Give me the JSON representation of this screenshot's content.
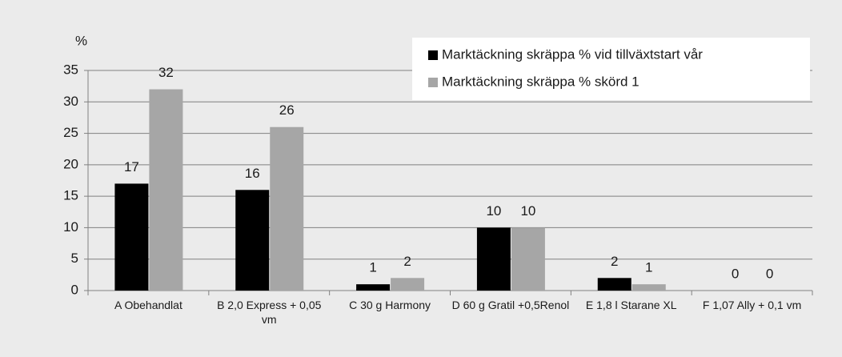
{
  "chart_data": {
    "type": "bar",
    "y_label": "%",
    "categories": [
      "A Obehandlat",
      "B 2,0 Express + 0,05 vm",
      "C 30 g Harmony",
      "D 60 g Gratil +0,5Renol",
      "E 1,8 l Starane XL",
      "F 1,07 Ally + 0,1 vm"
    ],
    "series": [
      {
        "name": "Marktäckning skräppa % vid tillväxtstart vår",
        "color": "#000000",
        "values": [
          17,
          16,
          1,
          10,
          2,
          0
        ]
      },
      {
        "name": "Marktäckning skräppa % skörd 1",
        "color": "#a6a6a6",
        "values": [
          32,
          26,
          2,
          10,
          1,
          0
        ]
      }
    ],
    "ylim": [
      0,
      35
    ],
    "yticks": [
      0,
      5,
      10,
      15,
      20,
      25,
      30,
      35
    ],
    "grid": true,
    "legend": "top-right"
  }
}
